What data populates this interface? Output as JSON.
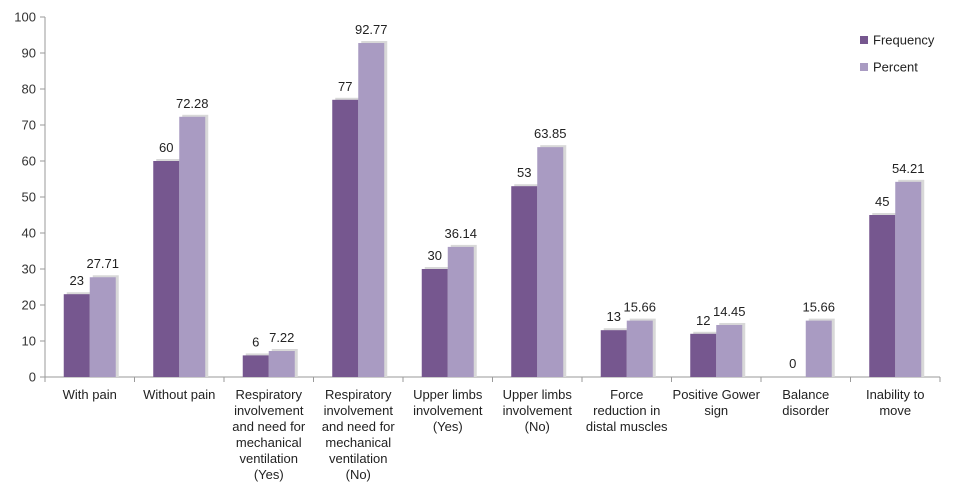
{
  "chart_data": {
    "type": "bar",
    "title": "",
    "xlabel": "",
    "ylabel": "",
    "ylim": [
      0,
      100
    ],
    "yticks": [
      0,
      10,
      20,
      30,
      40,
      50,
      60,
      70,
      80,
      90,
      100
    ],
    "grid": false,
    "legend_position": "top-right",
    "categories": [
      [
        "With pain"
      ],
      [
        "Without pain"
      ],
      [
        "Respiratory",
        "involvement",
        "and need for",
        "mechanical",
        "ventilation",
        "(Yes)"
      ],
      [
        "Respiratory",
        "involvement",
        "and need for",
        "mechanical",
        "ventilation",
        "(No)"
      ],
      [
        "Upper limbs",
        "involvement",
        "(Yes)"
      ],
      [
        "Upper limbs",
        "involvement",
        "(No)"
      ],
      [
        "Force",
        "reduction in",
        "distal muscles"
      ],
      [
        "Positive Gower",
        "sign"
      ],
      [
        "Balance",
        "disorder"
      ],
      [
        "Inability to",
        "move"
      ]
    ],
    "series": [
      {
        "name": "Frequency",
        "color": "#76578f",
        "values": [
          23,
          60,
          6,
          77,
          30,
          53,
          13,
          12,
          0,
          45
        ],
        "labels": [
          "23",
          "60",
          "6",
          "77",
          "30",
          "53",
          "13",
          "12",
          "0",
          "45"
        ]
      },
      {
        "name": "Percent",
        "color": "#a99bc2",
        "values": [
          27.71,
          72.28,
          7.22,
          92.77,
          36.14,
          63.85,
          15.66,
          14.45,
          15.66,
          54.21
        ],
        "labels": [
          "27.71",
          "72.28",
          "7.22",
          "92.77",
          "36.14",
          "63.85",
          "15.66",
          "14.45",
          "15.66",
          "54.21"
        ]
      }
    ]
  }
}
